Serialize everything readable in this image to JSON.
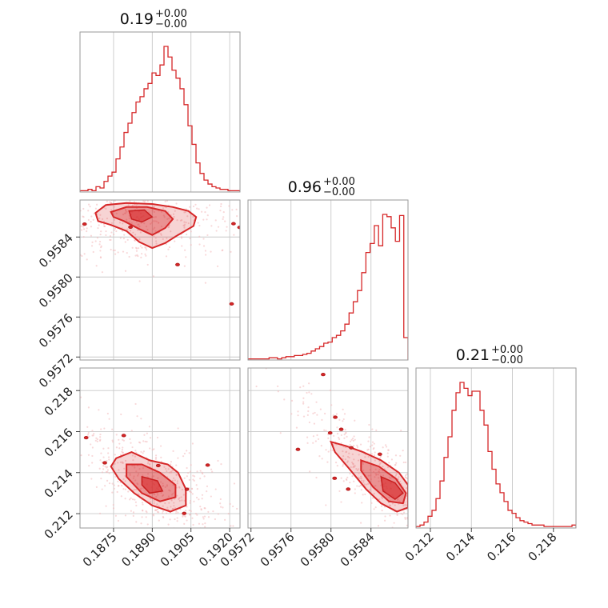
{
  "chart_data": {
    "type": "corner",
    "color": "#d62728",
    "grid": true,
    "parameters": [
      {
        "title_value": "0.19",
        "sup": "+0.00",
        "sub": "−0.00",
        "range": [
          0.1862,
          0.1924
        ],
        "ticks": [
          0.1875,
          0.189,
          0.1905,
          0.192
        ],
        "tick_labels": [
          "0.1875",
          "0.1890",
          "0.1905",
          "0.1920"
        ]
      },
      {
        "title_value": "0.96",
        "sup": "+0.00",
        "sub": "−0.00",
        "range": [
          0.95717,
          0.95877
        ],
        "ticks": [
          0.9572,
          0.9576,
          0.958,
          0.9584
        ],
        "tick_labels": [
          "0.9572",
          "0.9576",
          "0.9580",
          "0.9584"
        ]
      },
      {
        "title_value": "0.21",
        "sup": "+0.00",
        "sub": "−0.00",
        "range": [
          0.2113,
          0.2191
        ],
        "ticks": [
          0.212,
          0.214,
          0.216,
          0.218
        ],
        "tick_labels": [
          "0.212",
          "0.214",
          "0.216",
          "0.218"
        ]
      }
    ],
    "histograms": [
      {
        "param": 0,
        "edges_range": [
          0.1862,
          0.1924
        ],
        "counts": [
          1,
          1,
          2,
          1,
          4,
          3,
          8,
          12,
          15,
          25,
          34,
          45,
          52,
          60,
          68,
          72,
          78,
          82,
          90,
          88,
          96,
          110,
          102,
          92,
          86,
          78,
          66,
          50,
          36,
          22,
          14,
          9,
          6,
          4,
          3,
          2,
          2,
          1,
          1,
          1
        ]
      },
      {
        "param": 1,
        "edges_range": [
          0.95717,
          0.95877
        ],
        "counts": [
          1,
          1,
          1,
          1,
          1,
          2,
          2,
          1,
          2,
          3,
          3,
          4,
          4,
          5,
          6,
          8,
          10,
          12,
          15,
          16,
          20,
          22,
          26,
          32,
          42,
          52,
          62,
          78,
          96,
          104,
          120,
          102,
          130,
          128,
          118,
          106,
          129,
          20
        ]
      },
      {
        "param": 2,
        "edges_range": [
          0.2113,
          0.2191
        ],
        "counts": [
          1,
          2,
          4,
          8,
          12,
          20,
          32,
          48,
          62,
          80,
          92,
          99,
          95,
          90,
          93,
          93,
          80,
          70,
          52,
          40,
          30,
          24,
          18,
          12,
          10,
          7,
          5,
          4,
          3,
          2,
          2,
          2,
          1,
          1,
          1,
          1,
          1,
          1,
          1,
          2
        ]
      }
    ],
    "pairs": [
      {
        "x": 0,
        "y": 1,
        "outer_contour": [
          [
            0.1868,
            0.95864
          ],
          [
            0.1872,
            0.95872
          ],
          [
            0.188,
            0.95874
          ],
          [
            0.189,
            0.95873
          ],
          [
            0.1898,
            0.9587
          ],
          [
            0.1904,
            0.95866
          ],
          [
            0.1907,
            0.9586
          ],
          [
            0.1906,
            0.95851
          ],
          [
            0.19,
            0.95842
          ],
          [
            0.1895,
            0.95834
          ],
          [
            0.189,
            0.95829
          ],
          [
            0.1885,
            0.95835
          ],
          [
            0.188,
            0.95846
          ],
          [
            0.1874,
            0.95852
          ],
          [
            0.1869,
            0.95856
          ]
        ],
        "inner_contour": [
          [
            0.1874,
            0.95865
          ],
          [
            0.188,
            0.9587
          ],
          [
            0.1888,
            0.9587
          ],
          [
            0.1895,
            0.95866
          ],
          [
            0.1898,
            0.95858
          ],
          [
            0.1895,
            0.95849
          ],
          [
            0.189,
            0.95842
          ],
          [
            0.1885,
            0.95848
          ],
          [
            0.1879,
            0.95856
          ],
          [
            0.1875,
            0.9586
          ]
        ],
        "core_contour": [
          [
            0.1881,
            0.95866
          ],
          [
            0.1887,
            0.95867
          ],
          [
            0.189,
            0.9586
          ],
          [
            0.1886,
            0.95855
          ],
          [
            0.1882,
            0.95858
          ]
        ]
      },
      {
        "x": 0,
        "y": 2,
        "outer_contour": [
          [
            0.1876,
            0.2147
          ],
          [
            0.1882,
            0.215
          ],
          [
            0.1889,
            0.2146
          ],
          [
            0.1896,
            0.2144
          ],
          [
            0.19,
            0.214
          ],
          [
            0.1903,
            0.2132
          ],
          [
            0.1903,
            0.2124
          ],
          [
            0.1897,
            0.2121
          ],
          [
            0.189,
            0.2124
          ],
          [
            0.1883,
            0.213
          ],
          [
            0.1877,
            0.2137
          ],
          [
            0.1874,
            0.2143
          ]
        ],
        "inner_contour": [
          [
            0.188,
            0.2144
          ],
          [
            0.1886,
            0.2144
          ],
          [
            0.1893,
            0.214
          ],
          [
            0.1899,
            0.2134
          ],
          [
            0.1899,
            0.2128
          ],
          [
            0.1893,
            0.2126
          ],
          [
            0.1886,
            0.213
          ],
          [
            0.188,
            0.2138
          ]
        ],
        "core_contour": [
          [
            0.1886,
            0.2138
          ],
          [
            0.1892,
            0.2136
          ],
          [
            0.1894,
            0.2131
          ],
          [
            0.1889,
            0.213
          ],
          [
            0.1886,
            0.2134
          ]
        ]
      },
      {
        "x": 1,
        "y": 2,
        "outer_contour": [
          [
            0.958,
            0.2155
          ],
          [
            0.95815,
            0.2153
          ],
          [
            0.95832,
            0.215
          ],
          [
            0.9585,
            0.2146
          ],
          [
            0.95868,
            0.214
          ],
          [
            0.95877,
            0.2134
          ],
          [
            0.95877,
            0.2123
          ],
          [
            0.95866,
            0.2121
          ],
          [
            0.9585,
            0.2125
          ],
          [
            0.95835,
            0.2132
          ],
          [
            0.95818,
            0.2142
          ],
          [
            0.95804,
            0.215
          ]
        ],
        "inner_contour": [
          [
            0.9583,
            0.2146
          ],
          [
            0.95848,
            0.2143
          ],
          [
            0.95865,
            0.2137
          ],
          [
            0.95875,
            0.213
          ],
          [
            0.95872,
            0.2125
          ],
          [
            0.95858,
            0.2126
          ],
          [
            0.95842,
            0.2133
          ],
          [
            0.9583,
            0.2141
          ]
        ],
        "core_contour": [
          [
            0.9585,
            0.2138
          ],
          [
            0.95864,
            0.2135
          ],
          [
            0.95872,
            0.213
          ],
          [
            0.95864,
            0.2127
          ],
          [
            0.95852,
            0.2131
          ]
        ]
      }
    ]
  }
}
